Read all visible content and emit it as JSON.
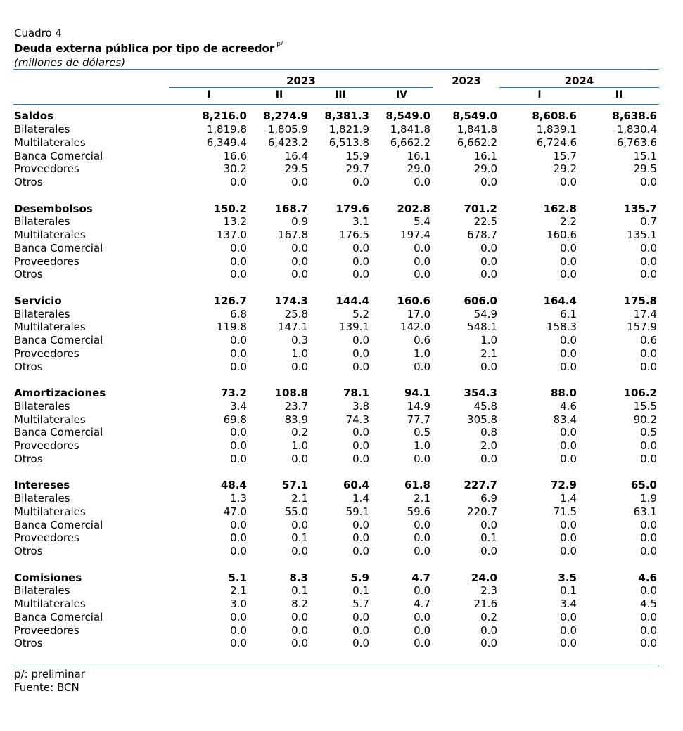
{
  "header": {
    "caption": "Cuadro 4",
    "title": "Deuda externa pública por tipo de acreedor",
    "title_note": "p/",
    "units": "(millones de dólares)"
  },
  "columns": {
    "year_a": "2023",
    "year_total": "2023",
    "year_b": "2024",
    "quarters_a": [
      "I",
      "II",
      "III",
      "IV"
    ],
    "quarters_b": [
      "I",
      "II"
    ]
  },
  "rows": [
    {
      "level": 0,
      "label": "Saldos",
      "values": [
        "8,216.0",
        "8,274.9",
        "8,381.3",
        "8,549.0",
        "8,549.0",
        "8,608.6",
        "8,638.6"
      ]
    },
    {
      "level": 1,
      "label": "Bilaterales",
      "values": [
        "1,819.8",
        "1,805.9",
        "1,821.9",
        "1,841.8",
        "1,841.8",
        "1,839.1",
        "1,830.4"
      ]
    },
    {
      "level": 1,
      "label": "Multilaterales",
      "values": [
        "6,349.4",
        "6,423.2",
        "6,513.8",
        "6,662.2",
        "6,662.2",
        "6,724.6",
        "6,763.6"
      ]
    },
    {
      "level": 1,
      "label": "Banca Comercial",
      "values": [
        "16.6",
        "16.4",
        "15.9",
        "16.1",
        "16.1",
        "15.7",
        "15.1"
      ]
    },
    {
      "level": 1,
      "label": "Proveedores",
      "values": [
        "30.2",
        "29.5",
        "29.7",
        "29.0",
        "29.0",
        "29.2",
        "29.5"
      ]
    },
    {
      "level": 1,
      "label": "Otros",
      "values": [
        "0.0",
        "0.0",
        "0.0",
        "0.0",
        "0.0",
        "0.0",
        "0.0"
      ]
    },
    {
      "level": "blank"
    },
    {
      "level": 0,
      "label": "Desembolsos",
      "values": [
        "150.2",
        "168.7",
        "179.6",
        "202.8",
        "701.2",
        "162.8",
        "135.7"
      ]
    },
    {
      "level": 1,
      "label": "Bilaterales",
      "values": [
        "13.2",
        "0.9",
        "3.1",
        "5.4",
        "22.5",
        "2.2",
        "0.7"
      ]
    },
    {
      "level": 1,
      "label": "Multilaterales",
      "values": [
        "137.0",
        "167.8",
        "176.5",
        "197.4",
        "678.7",
        "160.6",
        "135.1"
      ]
    },
    {
      "level": 1,
      "label": "Banca Comercial",
      "values": [
        "0.0",
        "0.0",
        "0.0",
        "0.0",
        "0.0",
        "0.0",
        "0.0"
      ]
    },
    {
      "level": 1,
      "label": "Proveedores",
      "values": [
        "0.0",
        "0.0",
        "0.0",
        "0.0",
        "0.0",
        "0.0",
        "0.0"
      ]
    },
    {
      "level": 1,
      "label": "Otros",
      "values": [
        "0.0",
        "0.0",
        "0.0",
        "0.0",
        "0.0",
        "0.0",
        "0.0"
      ]
    },
    {
      "level": "blank"
    },
    {
      "level": 0,
      "label": "Servicio",
      "values": [
        "126.7",
        "174.3",
        "144.4",
        "160.6",
        "606.0",
        "164.4",
        "175.8"
      ]
    },
    {
      "level": 1,
      "label": "Bilaterales",
      "values": [
        "6.8",
        "25.8",
        "5.2",
        "17.0",
        "54.9",
        "6.1",
        "17.4"
      ]
    },
    {
      "level": 1,
      "label": "Multilaterales",
      "values": [
        "119.8",
        "147.1",
        "139.1",
        "142.0",
        "548.1",
        "158.3",
        "157.9"
      ]
    },
    {
      "level": 1,
      "label": "Banca Comercial",
      "values": [
        "0.0",
        "0.3",
        "0.0",
        "0.6",
        "1.0",
        "0.0",
        "0.6"
      ]
    },
    {
      "level": 1,
      "label": "Proveedores",
      "values": [
        "0.0",
        "1.0",
        "0.0",
        "1.0",
        "2.1",
        "0.0",
        "0.0"
      ]
    },
    {
      "level": 1,
      "label": "Otros",
      "values": [
        "0.0",
        "0.0",
        "0.0",
        "0.0",
        "0.0",
        "0.0",
        "0.0"
      ]
    },
    {
      "level": "blank"
    },
    {
      "level": "1b",
      "label": "Amortizaciones",
      "values": [
        "73.2",
        "108.8",
        "78.1",
        "94.1",
        "354.3",
        "88.0",
        "106.2"
      ]
    },
    {
      "level": 2,
      "label": "Bilaterales",
      "values": [
        "3.4",
        "23.7",
        "3.8",
        "14.9",
        "45.8",
        "4.6",
        "15.5"
      ]
    },
    {
      "level": 2,
      "label": "Multilaterales",
      "values": [
        "69.8",
        "83.9",
        "74.3",
        "77.7",
        "305.8",
        "83.4",
        "90.2"
      ]
    },
    {
      "level": 2,
      "label": "Banca Comercial",
      "values": [
        "0.0",
        "0.2",
        "0.0",
        "0.5",
        "0.8",
        "0.0",
        "0.5"
      ]
    },
    {
      "level": 2,
      "label": "Proveedores",
      "values": [
        "0.0",
        "1.0",
        "0.0",
        "1.0",
        "2.0",
        "0.0",
        "0.0"
      ]
    },
    {
      "level": 2,
      "label": "Otros",
      "values": [
        "0.0",
        "0.0",
        "0.0",
        "0.0",
        "0.0",
        "0.0",
        "0.0"
      ]
    },
    {
      "level": "blank"
    },
    {
      "level": "1b",
      "label": "Intereses",
      "values": [
        "48.4",
        "57.1",
        "60.4",
        "61.8",
        "227.7",
        "72.9",
        "65.0"
      ]
    },
    {
      "level": 2,
      "label": "Bilaterales",
      "values": [
        "1.3",
        "2.1",
        "1.4",
        "2.1",
        "6.9",
        "1.4",
        "1.9"
      ]
    },
    {
      "level": 2,
      "label": "Multilaterales",
      "values": [
        "47.0",
        "55.0",
        "59.1",
        "59.6",
        "220.7",
        "71.5",
        "63.1"
      ]
    },
    {
      "level": 2,
      "label": "Banca Comercial",
      "values": [
        "0.0",
        "0.0",
        "0.0",
        "0.0",
        "0.0",
        "0.0",
        "0.0"
      ]
    },
    {
      "level": 2,
      "label": "Proveedores",
      "values": [
        "0.0",
        "0.1",
        "0.0",
        "0.0",
        "0.1",
        "0.0",
        "0.0"
      ]
    },
    {
      "level": 2,
      "label": "Otros",
      "values": [
        "0.0",
        "0.0",
        "0.0",
        "0.0",
        "0.0",
        "0.0",
        "0.0"
      ]
    },
    {
      "level": "blank"
    },
    {
      "level": "1b",
      "label": "Comisiones",
      "values": [
        "5.1",
        "8.3",
        "5.9",
        "4.7",
        "24.0",
        "3.5",
        "4.6"
      ]
    },
    {
      "level": 2,
      "label": "Bilaterales",
      "values": [
        "2.1",
        "0.1",
        "0.1",
        "0.0",
        "2.3",
        "0.1",
        "0.0"
      ]
    },
    {
      "level": 2,
      "label": "Multilaterales",
      "values": [
        "3.0",
        "8.2",
        "5.7",
        "4.7",
        "21.6",
        "3.4",
        "4.5"
      ]
    },
    {
      "level": 2,
      "label": "Banca Comercial",
      "values": [
        "0.0",
        "0.0",
        "0.0",
        "0.0",
        "0.2",
        "0.0",
        "0.0"
      ]
    },
    {
      "level": 2,
      "label": "Proveedores",
      "values": [
        "0.0",
        "0.0",
        "0.0",
        "0.0",
        "0.0",
        "0.0",
        "0.0"
      ]
    },
    {
      "level": 2,
      "label": "Otros",
      "values": [
        "0.0",
        "0.0",
        "0.0",
        "0.0",
        "0.0",
        "0.0",
        "0.0"
      ]
    }
  ],
  "footer": {
    "note": "p/: preliminar",
    "source": "Fuente: BCN"
  },
  "colors": {
    "rule": "#2e75b6"
  }
}
